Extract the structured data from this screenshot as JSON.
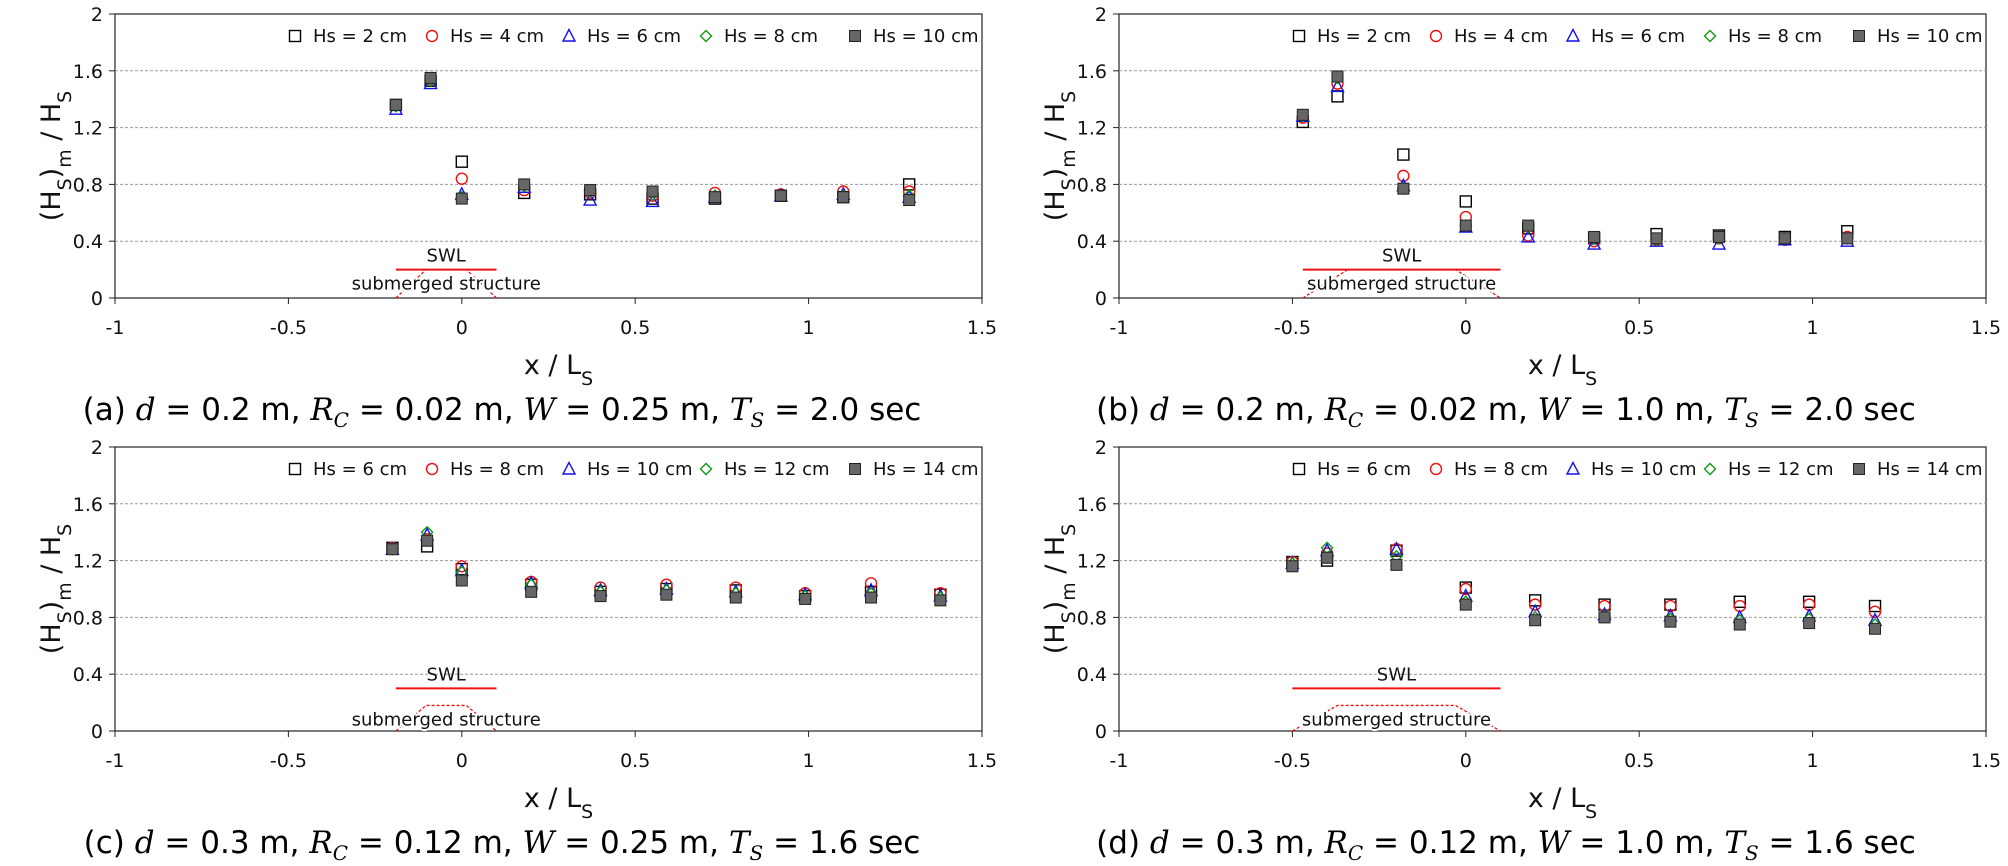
{
  "chart_data": [
    {
      "id": "a",
      "type": "scatter",
      "title": "(a) d = 0.2 m, R_C = 0.02 m, W = 0.25 m, T_S = 2.0 sec",
      "caption": {
        "prefix": "(a)",
        "d": "0.2",
        "rc": "0.02",
        "w": "0.25",
        "ts": "2.0"
      },
      "xlabel": "x / L_S",
      "ylabel": "(H_S)_m / H_S",
      "xlim": [
        -1,
        1.5
      ],
      "ylim": [
        0,
        2
      ],
      "xticks": [
        "-1",
        "-0.5",
        "0",
        "0.5",
        "1",
        "1.5"
      ],
      "yticks": [
        "0",
        "0.4",
        "0.8",
        "1.2",
        "1.6",
        "2"
      ],
      "grid": "horizontal dashed",
      "legend": "top",
      "annotations": {
        "swl": "SWL",
        "structure": "submerged structure"
      },
      "structure": {
        "x_start": -0.19,
        "x_end": 0.1,
        "crest": 0.2,
        "swl": 0.2
      },
      "series": [
        {
          "name": "Hs = 2 cm",
          "marker": "square-open",
          "color": "#000000",
          "x": [
            -0.19,
            -0.09,
            0,
            0.18,
            0.37,
            0.55,
            0.73,
            0.92,
            1.1,
            1.29
          ],
          "y": [
            1.36,
            1.53,
            0.96,
            0.74,
            0.73,
            0.7,
            0.7,
            0.72,
            0.71,
            0.8
          ]
        },
        {
          "name": "Hs = 4 cm",
          "marker": "circle-open",
          "color": "#ee1111",
          "x": [
            -0.19,
            -0.09,
            0,
            0.18,
            0.37,
            0.55,
            0.73,
            0.92,
            1.1,
            1.29
          ],
          "y": [
            1.36,
            1.54,
            0.84,
            0.76,
            0.74,
            0.72,
            0.74,
            0.73,
            0.75,
            0.75
          ]
        },
        {
          "name": "Hs = 6 cm",
          "marker": "triangle-open",
          "color": "#1111ee",
          "x": [
            -0.19,
            -0.09,
            0,
            0.18,
            0.37,
            0.55,
            0.73,
            0.92,
            1.1,
            1.29
          ],
          "y": [
            1.33,
            1.51,
            0.73,
            0.78,
            0.69,
            0.68,
            0.71,
            0.72,
            0.73,
            0.71
          ]
        },
        {
          "name": "Hs = 8 cm",
          "marker": "diamond-open",
          "color": "#119911",
          "x": [
            -0.19,
            -0.09,
            0,
            0.18,
            0.37,
            0.55,
            0.73,
            0.92,
            1.1,
            1.29
          ],
          "y": [
            1.35,
            1.53,
            0.71,
            0.79,
            0.75,
            0.73,
            0.72,
            0.72,
            0.72,
            0.72
          ]
        },
        {
          "name": "Hs = 10 cm",
          "marker": "square-filled",
          "color": "#666666",
          "x": [
            -0.19,
            -0.09,
            0,
            0.18,
            0.37,
            0.55,
            0.73,
            0.92,
            1.1,
            1.29
          ],
          "y": [
            1.36,
            1.55,
            0.7,
            0.8,
            0.76,
            0.75,
            0.71,
            0.72,
            0.71,
            0.69
          ]
        }
      ]
    },
    {
      "id": "b",
      "type": "scatter",
      "title": "(b) d = 0.2 m, R_C = 0.02 m, W = 1.0 m, T_S = 2.0 sec",
      "caption": {
        "prefix": "(b)",
        "d": "0.2",
        "rc": "0.02",
        "w": "1.0",
        "ts": "2.0"
      },
      "xlabel": "x / L_S",
      "ylabel": "(H_S)_m / H_S",
      "xlim": [
        -1,
        1.5
      ],
      "ylim": [
        0,
        2
      ],
      "xticks": [
        "-1",
        "-0.5",
        "0",
        "0.5",
        "1",
        "1.5"
      ],
      "yticks": [
        "0",
        "0.4",
        "0.8",
        "1.2",
        "1.6",
        "2"
      ],
      "grid": "horizontal dashed",
      "legend": "top",
      "annotations": {
        "swl": "SWL",
        "structure": "submerged structure"
      },
      "structure": {
        "x_start": -0.47,
        "x_end": 0.1,
        "crest": 0.2,
        "swl": 0.2
      },
      "series": [
        {
          "name": "Hs = 2 cm",
          "marker": "square-open",
          "color": "#000000",
          "x": [
            -0.47,
            -0.37,
            -0.18,
            0,
            0.18,
            0.37,
            0.55,
            0.73,
            0.92,
            1.1
          ],
          "y": [
            1.24,
            1.42,
            1.01,
            0.68,
            0.49,
            0.42,
            0.45,
            0.44,
            0.43,
            0.47
          ]
        },
        {
          "name": "Hs = 4 cm",
          "marker": "circle-open",
          "color": "#ee1111",
          "x": [
            -0.47,
            -0.37,
            -0.18,
            0,
            0.18,
            0.37,
            0.55,
            0.73,
            0.92,
            1.1
          ],
          "y": [
            1.27,
            1.51,
            0.86,
            0.57,
            0.44,
            0.4,
            0.41,
            0.42,
            0.41,
            0.43
          ]
        },
        {
          "name": "Hs = 6 cm",
          "marker": "triangle-open",
          "color": "#1111ee",
          "x": [
            -0.47,
            -0.37,
            -0.18,
            0,
            0.18,
            0.37,
            0.55,
            0.73,
            0.92,
            1.1
          ],
          "y": [
            1.28,
            1.49,
            0.79,
            0.5,
            0.43,
            0.38,
            0.4,
            0.38,
            0.41,
            0.4
          ]
        },
        {
          "name": "Hs = 8 cm",
          "marker": "diamond-open",
          "color": "#119911",
          "x": [
            -0.47,
            -0.37,
            -0.18,
            0,
            0.18,
            0.37,
            0.55,
            0.73,
            0.92,
            1.1
          ],
          "y": [
            1.28,
            1.55,
            0.77,
            0.51,
            0.5,
            0.42,
            0.41,
            0.42,
            0.42,
            0.42
          ]
        },
        {
          "name": "Hs = 10 cm",
          "marker": "square-filled",
          "color": "#666666",
          "x": [
            -0.47,
            -0.37,
            -0.18,
            0,
            0.18,
            0.37,
            0.55,
            0.73,
            0.92,
            1.1
          ],
          "y": [
            1.29,
            1.56,
            0.77,
            0.51,
            0.51,
            0.43,
            0.42,
            0.43,
            0.42,
            0.42
          ]
        }
      ]
    },
    {
      "id": "c",
      "type": "scatter",
      "title": "(c) d = 0.3 m, R_C = 0.12 m, W = 0.25 m, T_S = 1.6 sec",
      "caption": {
        "prefix": "(c)",
        "d": "0.3",
        "rc": "0.12",
        "w": "0.25",
        "ts": "1.6"
      },
      "xlabel": "x / L_S",
      "ylabel": "(H_S)_m / H_S",
      "xlim": [
        -1,
        1.5
      ],
      "ylim": [
        0,
        2
      ],
      "xticks": [
        "-1",
        "-0.5",
        "0",
        "0.5",
        "1",
        "1.5"
      ],
      "yticks": [
        "0",
        "0.4",
        "0.8",
        "1.2",
        "1.6",
        "2"
      ],
      "grid": "horizontal dashed",
      "legend": "top",
      "annotations": {
        "swl": "SWL",
        "structure": "submerged structure"
      },
      "structure": {
        "x_start": -0.19,
        "x_end": 0.1,
        "crest": 0.18,
        "swl": 0.3
      },
      "series": [
        {
          "name": "Hs = 6 cm",
          "marker": "square-open",
          "color": "#000000",
          "x": [
            -0.2,
            -0.1,
            0,
            0.2,
            0.4,
            0.59,
            0.79,
            0.99,
            1.18,
            1.38
          ],
          "y": [
            1.29,
            1.3,
            1.14,
            1.03,
            0.98,
            1.0,
            0.99,
            0.95,
            0.98,
            0.96
          ]
        },
        {
          "name": "Hs = 8 cm",
          "marker": "circle-open",
          "color": "#ee1111",
          "x": [
            -0.2,
            -0.1,
            0,
            0.2,
            0.4,
            0.59,
            0.79,
            0.99,
            1.18,
            1.38
          ],
          "y": [
            1.29,
            1.35,
            1.16,
            1.05,
            1.01,
            1.03,
            1.01,
            0.97,
            1.04,
            0.97
          ]
        },
        {
          "name": "Hs = 10 cm",
          "marker": "triangle-open",
          "color": "#1111ee",
          "x": [
            -0.2,
            -0.1,
            0,
            0.2,
            0.4,
            0.59,
            0.79,
            0.99,
            1.18,
            1.38
          ],
          "y": [
            1.28,
            1.38,
            1.13,
            1.04,
            0.99,
            1.0,
            0.98,
            0.96,
            0.99,
            0.95
          ]
        },
        {
          "name": "Hs = 12 cm",
          "marker": "diamond-open",
          "color": "#119911",
          "x": [
            -0.2,
            -0.1,
            0,
            0.2,
            0.4,
            0.59,
            0.79,
            0.99,
            1.18,
            1.38
          ],
          "y": [
            1.28,
            1.4,
            1.12,
            1.03,
            0.98,
            0.99,
            0.97,
            0.95,
            0.97,
            0.94
          ]
        },
        {
          "name": "Hs = 14 cm",
          "marker": "square-filled",
          "color": "#666666",
          "x": [
            -0.2,
            -0.1,
            0,
            0.2,
            0.4,
            0.59,
            0.79,
            0.99,
            1.18,
            1.38
          ],
          "y": [
            1.28,
            1.34,
            1.06,
            0.98,
            0.95,
            0.96,
            0.94,
            0.93,
            0.94,
            0.92
          ]
        }
      ]
    },
    {
      "id": "d",
      "type": "scatter",
      "title": "(d) d = 0.3 m, R_C = 0.12 m, W = 1.0 m, T_S = 1.6 sec",
      "caption": {
        "prefix": "(d)",
        "d": "0.3",
        "rc": "0.12",
        "w": "1.0",
        "ts": "1.6"
      },
      "xlabel": "x / L_S",
      "ylabel": "(H_S)_m / H_S",
      "xlim": [
        -1,
        1.5
      ],
      "ylim": [
        0,
        2
      ],
      "xticks": [
        "-1",
        "-0.5",
        "0",
        "0.5",
        "1",
        "1.5"
      ],
      "yticks": [
        "0",
        "0.4",
        "0.8",
        "1.2",
        "1.6",
        "2"
      ],
      "grid": "horizontal dashed",
      "legend": "top",
      "annotations": {
        "swl": "SWL",
        "structure": "submerged structure"
      },
      "structure": {
        "x_start": -0.5,
        "x_end": 0.1,
        "crest": 0.18,
        "swl": 0.3
      },
      "series": [
        {
          "name": "Hs = 6 cm",
          "marker": "square-open",
          "color": "#000000",
          "x": [
            -0.5,
            -0.4,
            -0.2,
            0,
            0.2,
            0.4,
            0.59,
            0.79,
            0.99,
            1.18
          ],
          "y": [
            1.19,
            1.2,
            1.27,
            1.01,
            0.92,
            0.89,
            0.89,
            0.91,
            0.91,
            0.88
          ]
        },
        {
          "name": "Hs = 8 cm",
          "marker": "circle-open",
          "color": "#ee1111",
          "x": [
            -0.5,
            -0.4,
            -0.2,
            0,
            0.2,
            0.4,
            0.59,
            0.79,
            0.99,
            1.18
          ],
          "y": [
            1.19,
            1.25,
            1.28,
            1.0,
            0.89,
            0.88,
            0.88,
            0.88,
            0.89,
            0.84
          ]
        },
        {
          "name": "Hs = 10 cm",
          "marker": "triangle-open",
          "color": "#1111ee",
          "x": [
            -0.5,
            -0.4,
            -0.2,
            0,
            0.2,
            0.4,
            0.59,
            0.79,
            0.99,
            1.18
          ],
          "y": [
            1.18,
            1.27,
            1.28,
            0.95,
            0.84,
            0.82,
            0.81,
            0.8,
            0.81,
            0.78
          ]
        },
        {
          "name": "Hs = 12 cm",
          "marker": "diamond-open",
          "color": "#119911",
          "x": [
            -0.5,
            -0.4,
            -0.2,
            0,
            0.2,
            0.4,
            0.59,
            0.79,
            0.99,
            1.18
          ],
          "y": [
            1.18,
            1.29,
            1.23,
            0.91,
            0.8,
            0.81,
            0.79,
            0.78,
            0.79,
            0.75
          ]
        },
        {
          "name": "Hs = 14 cm",
          "marker": "square-filled",
          "color": "#666666",
          "x": [
            -0.5,
            -0.4,
            -0.2,
            0,
            0.2,
            0.4,
            0.59,
            0.79,
            0.99,
            1.18
          ],
          "y": [
            1.16,
            1.22,
            1.17,
            0.89,
            0.78,
            0.8,
            0.77,
            0.75,
            0.76,
            0.72
          ]
        }
      ]
    }
  ]
}
